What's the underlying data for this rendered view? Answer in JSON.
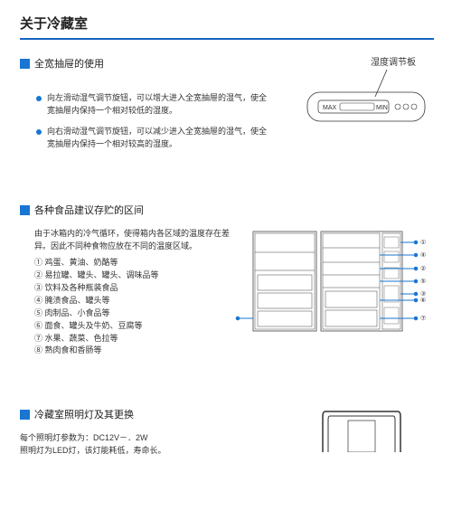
{
  "page_title": "关于冷藏室",
  "section1": {
    "title": "全宽抽屉的使用",
    "humidity_label": "湿度调节板",
    "bullet1": "向左滑动湿气调节旋钮，可以增大进入全宽抽屉的湿气，使全宽抽屉内保持一个相对较低的湿度。",
    "bullet2": "向右滑动湿气调节旋钮，可以减少进入全宽抽屉的湿气，使全宽抽屉内保持一个相对较高的湿度。",
    "panel": {
      "max": "MAX",
      "min": "MIN"
    }
  },
  "section2": {
    "title": "各种食品建议存贮的区间",
    "intro": "由于冰箱内的冷气循环，使得箱内各区域的温度存在差异。因此不同种食物应放在不同的温度区域。",
    "items": [
      "鸡蛋、黄油、奶酪等",
      "易拉罐、罐头、罐头、调味品等",
      "饮料及各种瓶装食品",
      "腌渍食品、罐头等",
      "肉制品、小食品等",
      "面食、罐头及牛奶、豆腐等",
      "水果、蔬菜、色拉等",
      "熟肉食和香肠等"
    ],
    "circled_nums": [
      "①",
      "②",
      "③",
      "④",
      "⑤",
      "⑥",
      "⑦",
      "⑧"
    ],
    "colors": {
      "accent": "#1976d2",
      "line": "#444"
    }
  },
  "section3": {
    "title": "冷藏室照明灯及其更换",
    "spec1": "每个照明灯参数为：DC12V－．2W",
    "spec2": "照明灯为LED灯，该灯能耗低，寿命长。"
  }
}
